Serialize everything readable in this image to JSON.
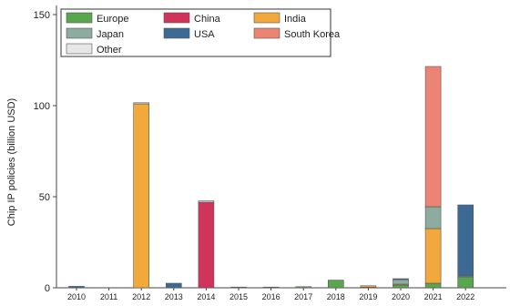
{
  "chart_data": {
    "type": "bar",
    "stacked": true,
    "ylabel": "Chip IP policies (billion USD)",
    "xlabel": "",
    "ylim": [
      0,
      155
    ],
    "yticks": [
      0,
      50,
      100,
      150
    ],
    "grid": false,
    "legend_position": "top-left",
    "categories": [
      "2010",
      "2011",
      "2012",
      "2013",
      "2014",
      "2015",
      "2016",
      "2017",
      "2018",
      "2019",
      "2020",
      "2021",
      "2022"
    ],
    "series": [
      {
        "name": "Europe",
        "color": "#5aa64f",
        "values": [
          0,
          0,
          0,
          0,
          0,
          0.3,
          0.3,
          0.6,
          4.2,
          0,
          1.5,
          2.5,
          6.0
        ]
      },
      {
        "name": "China",
        "color": "#d1345b",
        "values": [
          0,
          0,
          0,
          0,
          47.0,
          0,
          0,
          0,
          0,
          0.3,
          0,
          0,
          0
        ]
      },
      {
        "name": "India",
        "color": "#f2a93b",
        "values": [
          0,
          0,
          101.0,
          0,
          0,
          0,
          0,
          0,
          0,
          0.8,
          0.5,
          30.0,
          0
        ]
      },
      {
        "name": "Japan",
        "color": "#8eaba0",
        "values": [
          0,
          0,
          0,
          0,
          0,
          0,
          0,
          0,
          0,
          0,
          2.5,
          12.0,
          0.5
        ]
      },
      {
        "name": "USA",
        "color": "#3d6a94",
        "values": [
          0.8,
          0,
          0,
          2.5,
          0,
          0,
          0,
          0,
          0,
          0,
          0.5,
          0,
          39.0
        ]
      },
      {
        "name": "South Korea",
        "color": "#ec8474",
        "values": [
          0,
          0,
          0,
          0,
          0,
          0,
          0,
          0,
          0,
          0,
          0,
          77.0,
          0
        ]
      },
      {
        "name": "Other",
        "color": "#e6e6e6",
        "values": [
          0,
          0,
          0.6,
          0,
          0.8,
          0,
          0,
          0,
          0,
          0,
          0,
          0,
          0
        ]
      }
    ]
  }
}
